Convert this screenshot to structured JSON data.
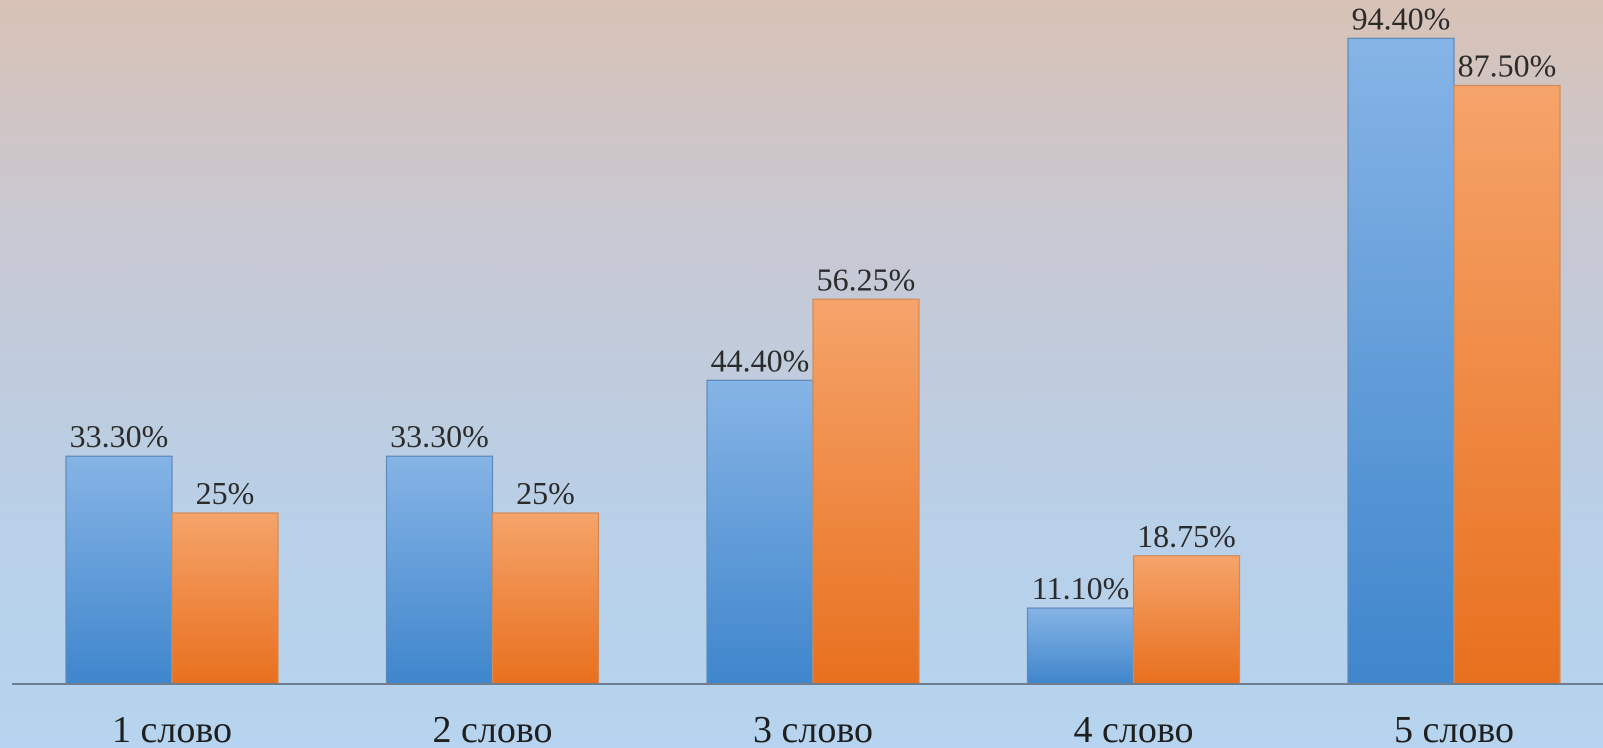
{
  "chart_data": {
    "type": "bar",
    "categories": [
      "1 слово",
      "2 слово",
      "3 слово",
      "4 слово",
      "5 слово"
    ],
    "series": [
      {
        "values": [
          33.3,
          33.3,
          44.4,
          11.1,
          94.4
        ],
        "labels": [
          "33.30%",
          "33.30%",
          "44.40%",
          "11.10%",
          "94.40%"
        ],
        "color_top": "#86b4e6",
        "color_bottom": "#3f86cc"
      },
      {
        "values": [
          25,
          25,
          56.25,
          18.75,
          87.5
        ],
        "labels": [
          "25%",
          "25%",
          "56.25%",
          "18.75%",
          "87.50%"
        ],
        "color_top": "#f5a46b",
        "color_bottom": "#e8701e"
      }
    ],
    "ylim": [
      0,
      100
    ],
    "grid": false,
    "legend": false,
    "axis_color": "#6f7d8c"
  }
}
